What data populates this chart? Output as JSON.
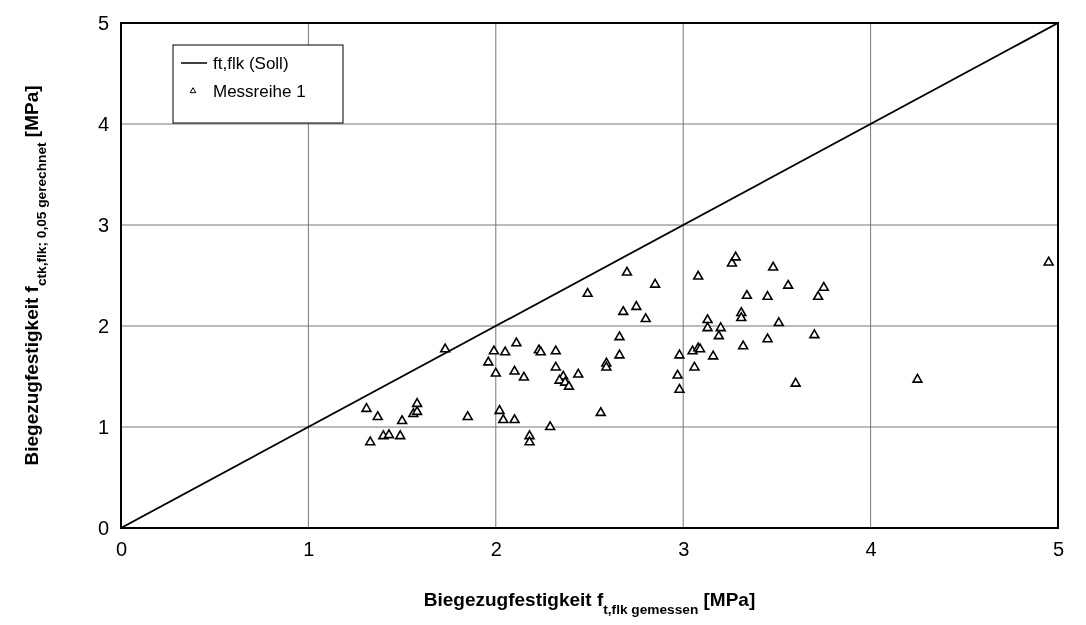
{
  "chart_data": {
    "type": "scatter",
    "xlabel": "Biegezugfestigkeit f$_{t,flk gemessen}$ [MPa]",
    "ylabel": "Biegezugfestigkeit f$_{ctk,flk; 0,05 gerechnet}$ [MPa]",
    "xlim": [
      0,
      5
    ],
    "ylim": [
      0,
      5
    ],
    "xticks": [
      0,
      1,
      2,
      3,
      4,
      5
    ],
    "yticks": [
      0,
      1,
      2,
      3,
      4,
      5
    ],
    "grid": true,
    "legend": "top left",
    "series": [
      {
        "name": "ft,flk (Soll)",
        "type": "line",
        "color": "#000000",
        "x": [
          0,
          5
        ],
        "values": [
          0,
          5
        ]
      },
      {
        "name": "Messreihe 1",
        "marker": "triangle",
        "color": "#000000",
        "x": [
          1.73,
          1.31,
          1.37,
          1.33,
          1.4,
          1.43,
          1.49,
          1.5,
          1.56,
          1.58,
          1.58,
          1.85,
          1.96,
          1.99,
          2.05,
          2.0,
          2.11,
          2.1,
          2.15,
          2.02,
          2.04,
          2.1,
          2.18,
          2.18,
          2.23,
          2.49,
          2.7,
          2.85,
          2.68,
          2.75,
          2.8,
          2.66,
          2.66,
          2.24,
          2.32,
          2.32,
          2.36,
          2.34,
          2.37,
          2.39,
          2.44,
          2.59,
          2.59,
          2.56,
          2.29,
          2.98,
          2.97,
          2.98,
          3.05,
          3.08,
          3.09,
          3.06,
          3.08,
          3.26,
          3.28,
          3.48,
          3.13,
          3.13,
          3.2,
          3.19,
          3.16,
          3.32,
          3.34,
          3.45,
          3.31,
          3.31,
          3.45,
          3.51,
          3.56,
          3.75,
          3.72,
          3.7,
          3.6,
          4.25,
          4.95
        ],
        "values": [
          1.77,
          1.18,
          1.1,
          0.85,
          0.91,
          0.92,
          0.91,
          1.06,
          1.13,
          1.15,
          1.23,
          1.1,
          1.64,
          1.75,
          1.74,
          1.53,
          1.83,
          1.55,
          1.49,
          1.16,
          1.07,
          1.07,
          0.91,
          0.85,
          1.76,
          2.32,
          2.53,
          2.41,
          2.14,
          2.19,
          2.07,
          1.89,
          1.71,
          1.74,
          1.75,
          1.59,
          1.5,
          1.46,
          1.44,
          1.4,
          1.52,
          1.63,
          1.59,
          1.14,
          1.0,
          1.71,
          1.51,
          1.37,
          1.75,
          1.78,
          1.77,
          1.59,
          2.49,
          2.62,
          2.68,
          2.58,
          2.06,
          1.98,
          1.98,
          1.9,
          1.7,
          1.8,
          2.3,
          2.29,
          2.13,
          2.08,
          1.87,
          2.03,
          2.4,
          2.38,
          2.29,
          1.91,
          1.43,
          1.47,
          2.63
        ]
      }
    ]
  }
}
